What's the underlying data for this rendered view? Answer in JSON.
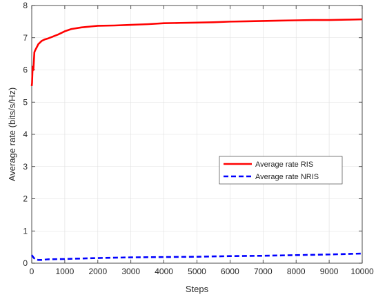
{
  "chart_data": {
    "type": "line",
    "title": "",
    "xlabel": "Steps",
    "ylabel": "Average rate (bits/s/Hz)",
    "xlim": [
      0,
      10000
    ],
    "ylim": [
      0,
      8
    ],
    "xticks": [
      0,
      1000,
      2000,
      3000,
      4000,
      5000,
      6000,
      7000,
      8000,
      9000,
      10000
    ],
    "yticks": [
      0,
      1,
      2,
      3,
      4,
      5,
      6,
      7,
      8
    ],
    "grid": true,
    "legend_position": "center-right",
    "series": [
      {
        "name": "Average rate RIS",
        "color": "#ff0000",
        "style": "solid",
        "x": [
          0,
          10,
          20,
          30,
          50,
          80,
          100,
          150,
          200,
          300,
          400,
          500,
          600,
          800,
          1000,
          1200,
          1500,
          1800,
          2000,
          2500,
          3000,
          3500,
          4000,
          4500,
          5000,
          5500,
          6000,
          6500,
          7000,
          7500,
          8000,
          8500,
          9000,
          9500,
          10000
        ],
        "y": [
          5.5,
          5.6,
          5.9,
          6.1,
          6.0,
          6.55,
          6.6,
          6.7,
          6.8,
          6.9,
          6.95,
          6.98,
          7.02,
          7.1,
          7.2,
          7.27,
          7.32,
          7.35,
          7.37,
          7.38,
          7.4,
          7.42,
          7.45,
          7.46,
          7.47,
          7.48,
          7.5,
          7.51,
          7.52,
          7.53,
          7.54,
          7.55,
          7.55,
          7.56,
          7.57
        ]
      },
      {
        "name": "Average rate NRIS",
        "color": "#0000ff",
        "style": "dashed",
        "x": [
          0,
          50,
          100,
          200,
          300,
          500,
          1000,
          2000,
          3000,
          4000,
          5000,
          6000,
          7000,
          8000,
          9000,
          10000
        ],
        "y": [
          0.25,
          0.18,
          0.12,
          0.1,
          0.1,
          0.12,
          0.13,
          0.16,
          0.18,
          0.19,
          0.2,
          0.22,
          0.23,
          0.25,
          0.27,
          0.3
        ]
      }
    ]
  }
}
